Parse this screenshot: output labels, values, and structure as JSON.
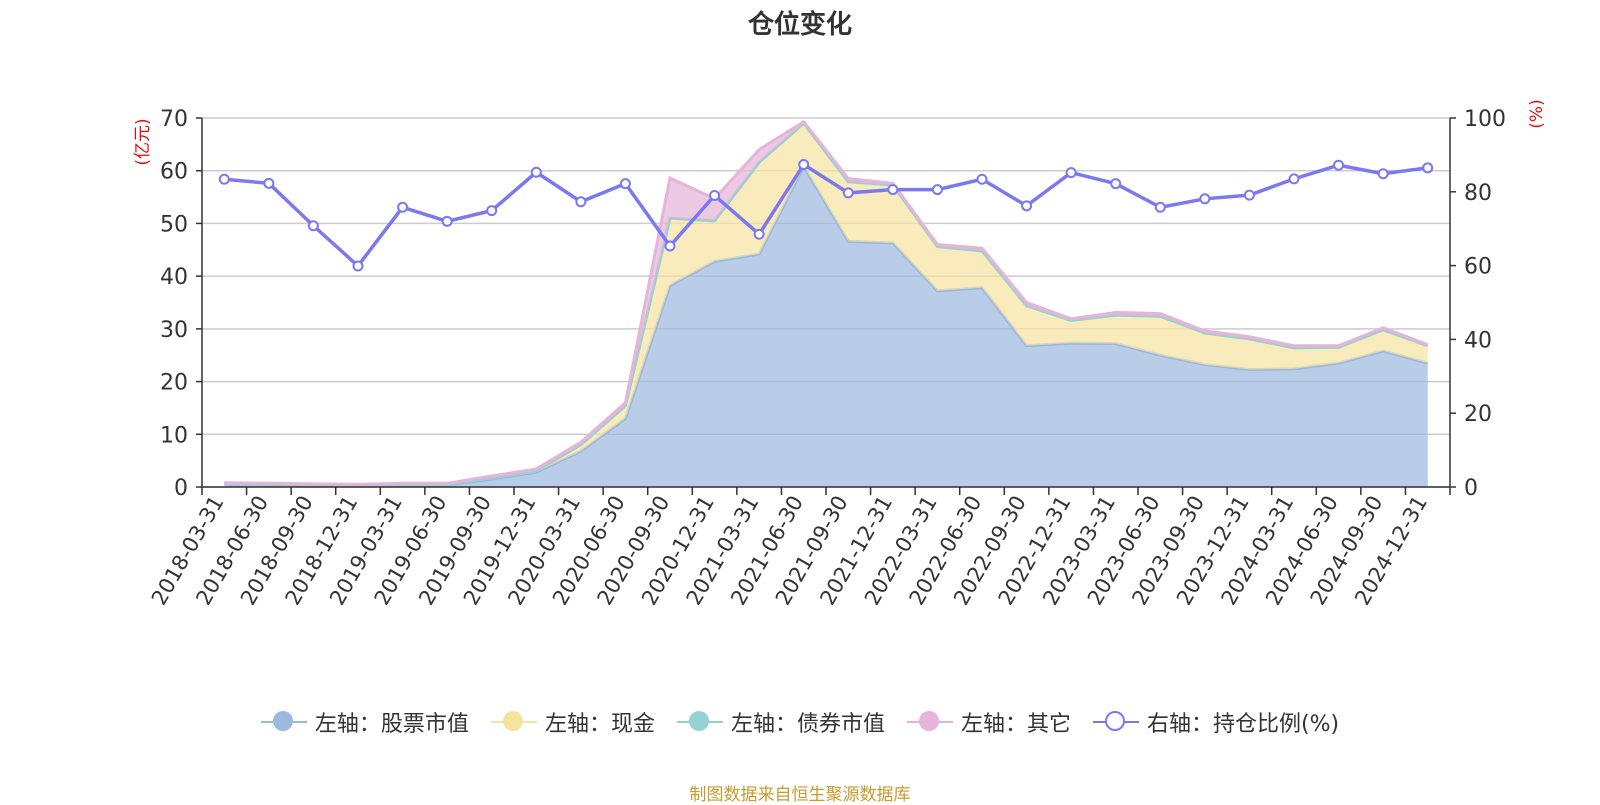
{
  "page": {
    "title": "仓位变化",
    "source": "制图数据来自恒生聚源数据库"
  },
  "chart_data": {
    "type": "area",
    "title": "仓位变化",
    "categories": [
      "2018-03-31",
      "2018-06-30",
      "2018-09-30",
      "2018-12-31",
      "2019-03-31",
      "2019-06-30",
      "2019-09-30",
      "2019-12-31",
      "2020-03-31",
      "2020-06-30",
      "2020-09-30",
      "2020-12-31",
      "2021-03-31",
      "2021-06-30",
      "2021-09-30",
      "2021-12-31",
      "2022-03-31",
      "2022-06-30",
      "2022-09-30",
      "2022-12-31",
      "2023-03-31",
      "2023-06-30",
      "2023-09-30",
      "2023-12-31",
      "2024-03-31",
      "2024-06-30",
      "2024-09-30",
      "2024-12-31"
    ],
    "y_left": {
      "label": "(亿元)",
      "min": 0,
      "max": 70,
      "ticks": [
        0,
        10,
        20,
        30,
        40,
        50,
        60,
        70
      ]
    },
    "y_right": {
      "label": "(%)",
      "min": 0,
      "max": 100,
      "ticks": [
        0,
        20,
        40,
        60,
        80,
        100
      ]
    },
    "stacked": true,
    "series": [
      {
        "name": "左轴：股票市值",
        "axis": "left",
        "color": "#9bb8e0",
        "values": [
          0.6,
          0.5,
          0.4,
          0.3,
          0.4,
          0.4,
          1.5,
          2.8,
          6.8,
          13,
          38.2,
          42.8,
          44.2,
          60.8,
          46.6,
          46.3,
          37.2,
          37.8,
          26.8,
          27.3,
          27.2,
          25,
          23.2,
          22.3,
          22.4,
          23.5,
          25.8,
          23.5
        ]
      },
      {
        "name": "左轴：现金",
        "axis": "left",
        "color": "#f7e3a0",
        "values": [
          0.1,
          0.1,
          0.1,
          0.1,
          0.1,
          0.1,
          0.3,
          0.3,
          1.2,
          2.4,
          12.8,
          7.7,
          17.4,
          8.2,
          11.3,
          11,
          8.4,
          7,
          7.6,
          4.3,
          5.4,
          7.4,
          6,
          5.8,
          4,
          3,
          4,
          3.3
        ]
      },
      {
        "name": "左轴：债券市值",
        "axis": "left",
        "color": "#93d3d2",
        "values": [
          0,
          0,
          0,
          0,
          0,
          0,
          0,
          0,
          0,
          0,
          0,
          0,
          0,
          0,
          0,
          0,
          0,
          0,
          0,
          0,
          0,
          0,
          0,
          0,
          0,
          0,
          0,
          0
        ]
      },
      {
        "name": "左轴：其它",
        "axis": "left",
        "color": "#e6b4d8",
        "values": [
          0.1,
          0.1,
          0.1,
          0.1,
          0.2,
          0.2,
          0.3,
          0.3,
          0.5,
          0.6,
          7.6,
          4.2,
          2.4,
          0.3,
          0.6,
          0.3,
          0.4,
          0.5,
          0.6,
          0.3,
          0.5,
          0.5,
          0.4,
          0.4,
          0.4,
          0.3,
          0.4,
          0.2
        ]
      },
      {
        "name": "右轴：持仓比例(%)",
        "axis": "right",
        "color": "#7b79f0",
        "type": "line",
        "values": [
          83.4,
          82.3,
          70.8,
          59.9,
          75.8,
          72,
          74.9,
          85.3,
          77.3,
          82.2,
          65.3,
          79,
          68.5,
          87.4,
          79.7,
          80.6,
          80.6,
          83.4,
          76.2,
          85.2,
          82.2,
          75.8,
          78.1,
          79.1,
          83.5,
          87.2,
          84.9,
          86.5
        ]
      }
    ],
    "legend_position": "bottom-center",
    "grid": true
  }
}
